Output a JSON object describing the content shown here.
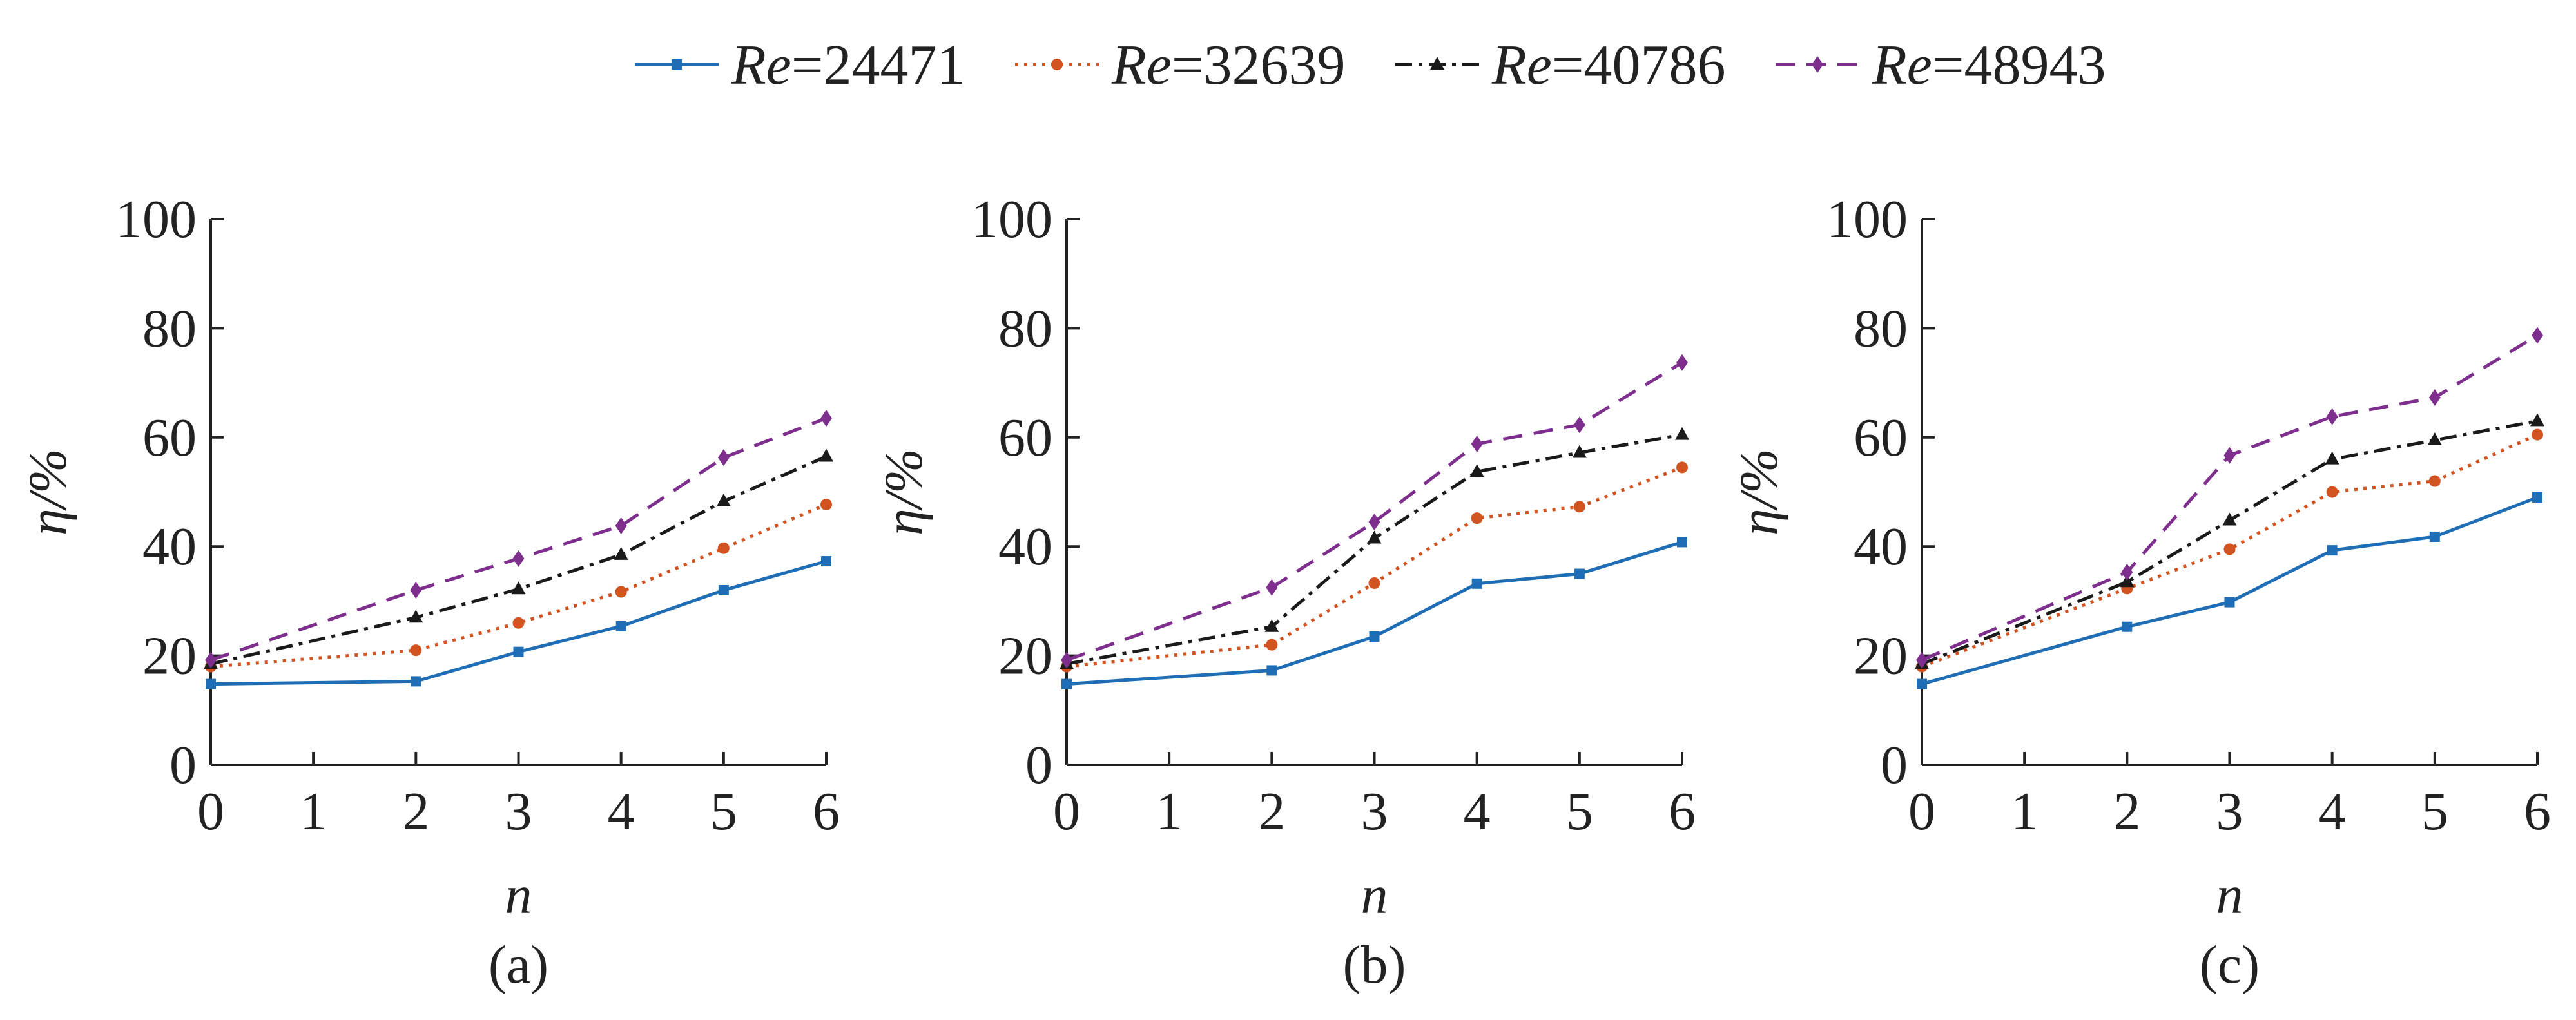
{
  "legend": [
    {
      "prefix": "Re",
      "value": "=24471"
    },
    {
      "prefix": "Re",
      "value": "=32639"
    },
    {
      "prefix": "Re",
      "value": "=40786"
    },
    {
      "prefix": "Re",
      "value": "=48943"
    }
  ],
  "series_styles": [
    {
      "color": "#1f6eb5",
      "dash": "none",
      "marker": "square"
    },
    {
      "color": "#d2531f",
      "dash": "dotted",
      "marker": "circle"
    },
    {
      "color": "#1a1a1a",
      "dash": "dashdot",
      "marker": "triangle"
    },
    {
      "color": "#7e2f8e",
      "dash": "dashed",
      "marker": "diamond"
    }
  ],
  "chart_data": [
    {
      "type": "line",
      "panel_label": "(a)",
      "xlabel": "n",
      "ylabel": "η/%",
      "xlim": [
        0,
        6
      ],
      "ylim": [
        0,
        100
      ],
      "xticks": [
        0,
        1,
        2,
        3,
        4,
        5,
        6
      ],
      "yticks": [
        0,
        20,
        40,
        60,
        80,
        100
      ],
      "x": [
        0,
        2,
        3,
        4,
        5,
        6
      ],
      "series": [
        {
          "name": "Re=24471",
          "values": [
            14.8,
            15.3,
            20.7,
            25.4,
            32.0,
            37.3
          ]
        },
        {
          "name": "Re=32639",
          "values": [
            18.0,
            21.0,
            26.0,
            31.7,
            39.7,
            47.7
          ]
        },
        {
          "name": "Re=40786",
          "values": [
            18.5,
            27.0,
            32.2,
            38.5,
            48.3,
            56.5
          ]
        },
        {
          "name": "Re=48943",
          "values": [
            19.2,
            32.0,
            37.8,
            43.8,
            56.3,
            63.5
          ]
        }
      ]
    },
    {
      "type": "line",
      "panel_label": "(b)",
      "xlabel": "n",
      "ylabel": "η/%",
      "xlim": [
        0,
        6
      ],
      "ylim": [
        0,
        100
      ],
      "xticks": [
        0,
        1,
        2,
        3,
        4,
        5,
        6
      ],
      "yticks": [
        0,
        20,
        40,
        60,
        80,
        100
      ],
      "x": [
        0,
        2,
        3,
        4,
        5,
        6
      ],
      "series": [
        {
          "name": "Re=24471",
          "values": [
            14.8,
            17.3,
            23.5,
            33.2,
            35.0,
            40.8
          ]
        },
        {
          "name": "Re=32639",
          "values": [
            18.0,
            22.0,
            33.3,
            45.2,
            47.3,
            54.5
          ]
        },
        {
          "name": "Re=40786",
          "values": [
            18.5,
            25.3,
            41.5,
            53.7,
            57.2,
            60.5
          ]
        },
        {
          "name": "Re=48943",
          "values": [
            19.2,
            32.5,
            44.5,
            58.8,
            62.3,
            73.7
          ]
        }
      ]
    },
    {
      "type": "line",
      "panel_label": "(c)",
      "xlabel": "n",
      "ylabel": "η/%",
      "xlim": [
        0,
        6
      ],
      "ylim": [
        0,
        100
      ],
      "xticks": [
        0,
        1,
        2,
        3,
        4,
        5,
        6
      ],
      "yticks": [
        0,
        20,
        40,
        60,
        80,
        100
      ],
      "x": [
        0,
        2,
        3,
        4,
        5,
        6
      ],
      "series": [
        {
          "name": "Re=24471",
          "values": [
            14.8,
            25.3,
            29.8,
            39.3,
            41.8,
            49.0
          ]
        },
        {
          "name": "Re=32639",
          "values": [
            18.0,
            32.3,
            39.5,
            50.0,
            52.0,
            60.5
          ]
        },
        {
          "name": "Re=40786",
          "values": [
            18.5,
            33.5,
            44.8,
            56.0,
            59.5,
            63.0
          ]
        },
        {
          "name": "Re=48943",
          "values": [
            19.2,
            35.3,
            56.7,
            63.8,
            67.3,
            78.7
          ]
        }
      ]
    }
  ]
}
